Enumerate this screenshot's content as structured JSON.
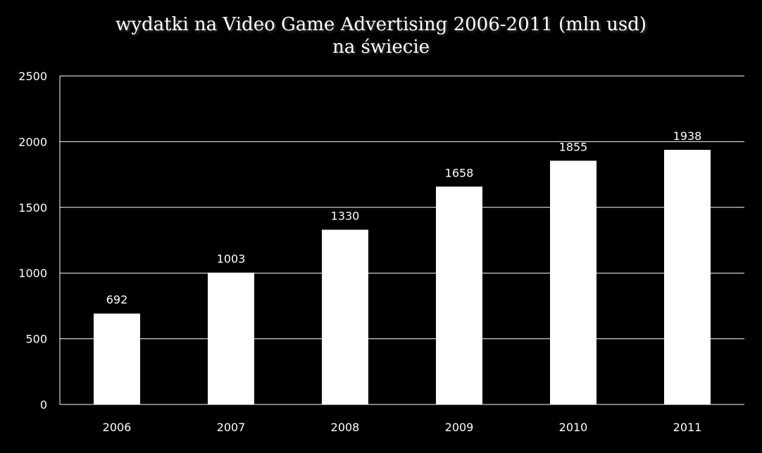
{
  "chart_data": {
    "type": "bar",
    "title": "wydatki na Video Game Advertising 2006-2011 (mln usd)",
    "subtitle": "na świecie",
    "xlabel": "",
    "ylabel": "",
    "categories": [
      "2006",
      "2007",
      "2008",
      "2009",
      "2010",
      "2011"
    ],
    "values": [
      692,
      1003,
      1330,
      1658,
      1855,
      1938
    ],
    "data_labels": [
      "692",
      "1003",
      "1330",
      "1658",
      "1855",
      "1938"
    ],
    "ylim": [
      0,
      2500
    ],
    "yticks": [
      "0",
      "500",
      "1000",
      "1500",
      "2000",
      "2500"
    ],
    "ytick_values": [
      0,
      500,
      1000,
      1500,
      2000,
      2500
    ],
    "grid": true,
    "legend": "none",
    "colors": {
      "background": "#000000",
      "bar": "#ffffff",
      "grid": "#ffffff",
      "text": "#ffffff"
    }
  }
}
